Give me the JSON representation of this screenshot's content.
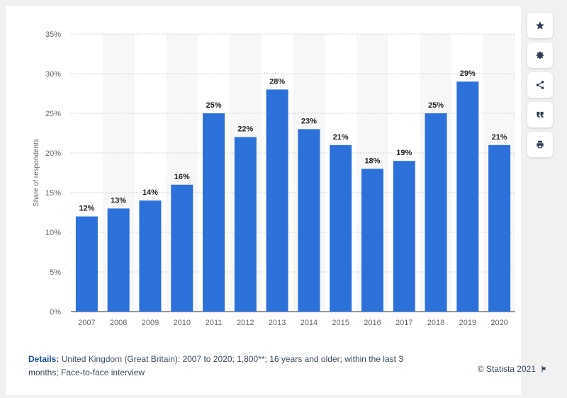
{
  "chart_data": {
    "type": "bar",
    "categories": [
      "2007",
      "2008",
      "2009",
      "2010",
      "2011",
      "2012",
      "2013",
      "2014",
      "2015",
      "2016",
      "2017",
      "2018",
      "2019",
      "2020"
    ],
    "values": [
      12,
      13,
      14,
      16,
      25,
      22,
      28,
      23,
      21,
      18,
      19,
      25,
      29,
      21
    ],
    "value_labels": [
      "12%",
      "13%",
      "14%",
      "16%",
      "25%",
      "22%",
      "28%",
      "23%",
      "21%",
      "18%",
      "19%",
      "25%",
      "29%",
      "21%"
    ],
    "ylabel": "Share of respondents",
    "xlabel": "",
    "ylim": [
      0,
      35
    ],
    "yticks": [
      "0%",
      "5%",
      "10%",
      "15%",
      "20%",
      "25%",
      "30%",
      "35%"
    ],
    "grid": true,
    "bar_color": "#2b71d9"
  },
  "details": {
    "label": "Details:",
    "text": "United Kingdom (Great Britain); 2007 to 2020; 1,800**; 16 years and older; within the last 3 months; Face-to-face interview"
  },
  "credit": "© Statista 2021",
  "sidebar": {
    "buttons": [
      "star-icon",
      "gear-icon",
      "share-icon",
      "quote-icon",
      "print-icon"
    ],
    "icon_color": "#2d3e55"
  }
}
